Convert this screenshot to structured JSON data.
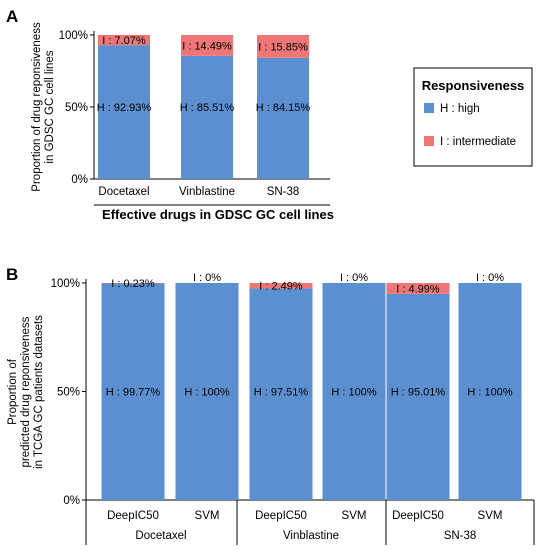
{
  "panel_letters": [
    "A",
    "B"
  ],
  "colors": {
    "high": "#5b8fd0",
    "intermediate": "#ee7676"
  },
  "legend": {
    "title": "Responsiveness",
    "items": [
      {
        "key": "high",
        "label": "H : high"
      },
      {
        "key": "intermediate",
        "label": "I : intermediate"
      }
    ]
  },
  "chart_data": [
    {
      "type": "bar",
      "stacked": true,
      "panel": "A",
      "categories": [
        "Docetaxel",
        "Vinblastine",
        "SN-38"
      ],
      "series": [
        {
          "key": "high",
          "values": [
            92.93,
            85.51,
            84.15
          ],
          "labels": [
            "H : 92.93%",
            "H : 85.51%",
            "H : 84.15%"
          ]
        },
        {
          "key": "intermediate",
          "values": [
            7.07,
            14.49,
            15.85
          ],
          "labels": [
            "I : 7.07%",
            "I : 14.49%",
            "I : 15.85%"
          ]
        }
      ],
      "yticks": [
        "0%",
        "50%",
        "100%"
      ],
      "ylim": [
        0,
        100
      ],
      "ylabel": [
        "Proportion of drug reponsiveness",
        "in GDSC GC cell lines"
      ],
      "xlabel": "Effective drugs in GDSC GC cell lines",
      "legend_position": "right"
    },
    {
      "type": "bar",
      "stacked": true,
      "panel": "B",
      "categories": [
        "DeepIC50",
        "SVM",
        "DeepIC50",
        "SVM",
        "DeepIC50",
        "SVM"
      ],
      "groups": [
        "Docetaxel",
        "Vinblastine",
        "SN-38"
      ],
      "series": [
        {
          "key": "high",
          "values": [
            99.77,
            100,
            97.51,
            100,
            95.01,
            100
          ],
          "labels": [
            "H : 99.77%",
            "H : 100%",
            "H : 97.51%",
            "H : 100%",
            "H : 95.01%",
            "H : 100%"
          ]
        },
        {
          "key": "intermediate",
          "values": [
            0.23,
            0,
            2.49,
            0,
            4.99,
            0
          ],
          "labels": [
            "I : 0.23%",
            "I : 0%",
            "I : 2.49%",
            "I : 0%",
            "I : 4.99%",
            "I : 0%"
          ]
        }
      ],
      "yticks": [
        "0%",
        "50%",
        "100%"
      ],
      "ylim": [
        0,
        100
      ],
      "ylabel": [
        "Proportion of",
        "predicted drug reponsiveness",
        "in TCGA GC patients datasets"
      ]
    }
  ]
}
